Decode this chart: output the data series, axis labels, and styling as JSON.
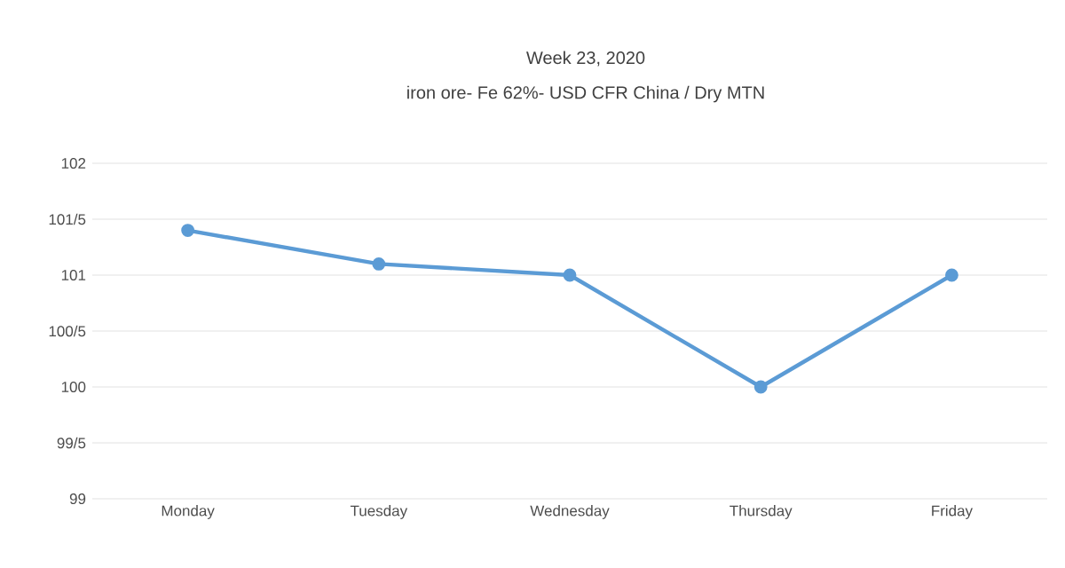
{
  "chart_data": {
    "type": "line",
    "title": "Week  23, 2020",
    "subtitle": "iron ore- Fe 62%- USD CFR China / Dry MTN",
    "categories": [
      "Monday",
      "Tuesday",
      "Wednesday",
      "Thursday",
      "Friday"
    ],
    "series": [
      {
        "color": "#5b9bd5",
        "values": [
          101.4,
          101.1,
          101,
          100,
          101
        ]
      }
    ],
    "ylim": [
      99,
      102
    ],
    "yticks": [
      99,
      {
        "value": 99.5,
        "label": "99/5"
      },
      100,
      {
        "value": 100.5,
        "label": "100/5"
      },
      101,
      {
        "value": 101.5,
        "label": "101/5"
      },
      102
    ],
    "grid": "y",
    "marker": "circle",
    "line_style": "solid"
  }
}
